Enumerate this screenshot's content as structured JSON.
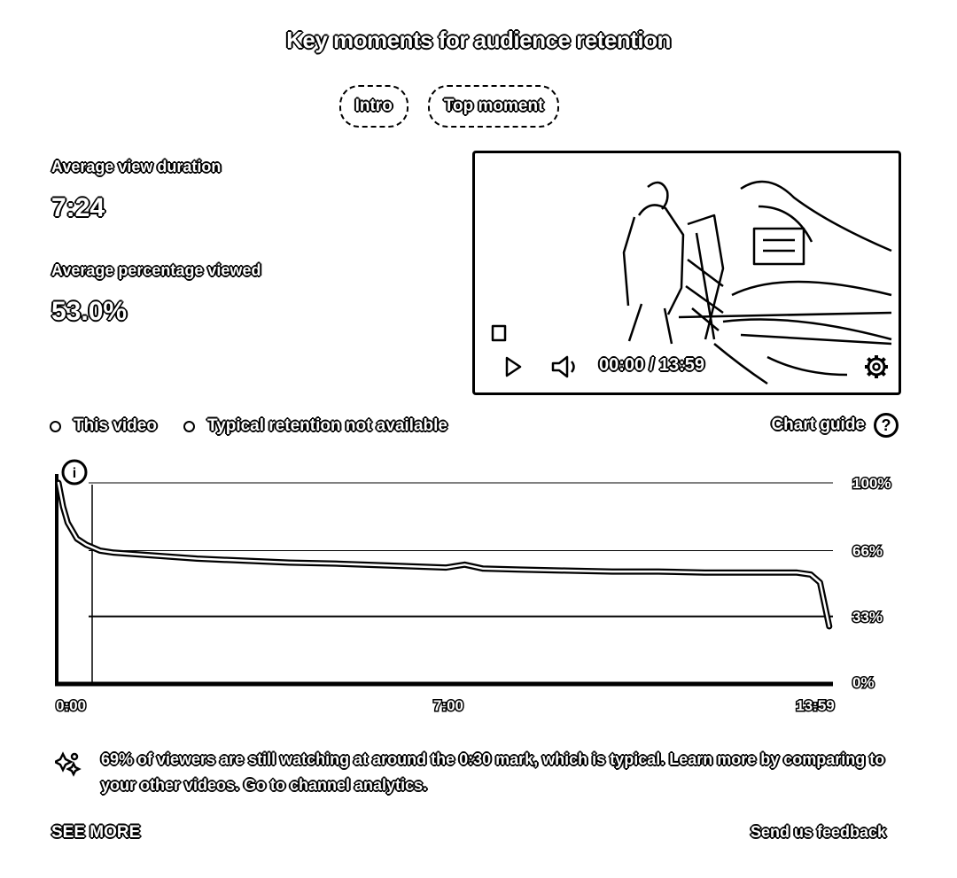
{
  "header": {
    "title": "Key moments for audience retention"
  },
  "tabs": [
    {
      "label": "Intro"
    },
    {
      "label": "Top moment"
    }
  ],
  "metrics": {
    "avg_view_duration_label": "Average view duration",
    "avg_view_duration_value": "7:24",
    "avg_percentage_viewed_label": "Average percentage viewed",
    "avg_percentage_viewed_value": "53.0%"
  },
  "player": {
    "time_readout": "00:00 / 13:59",
    "icons": [
      "play-icon",
      "volume-icon",
      "settings-gear-icon",
      "square-icon"
    ]
  },
  "legend": {
    "this_video": "This video",
    "typical": "Typical retention not available",
    "chart_guide": "Chart guide"
  },
  "chart_data": {
    "type": "line",
    "x_ticks": [
      "0:00",
      "7:00",
      "13:59"
    ],
    "y_ticks": [
      "100%",
      "66%",
      "33%",
      "0%"
    ],
    "ylim": [
      0,
      100
    ],
    "xlim_seconds": [
      0,
      839
    ],
    "marker_label": "i",
    "series": [
      {
        "x": [
          0,
          5,
          10,
          20,
          30,
          45,
          60,
          90,
          120,
          150,
          200,
          250,
          300,
          360,
          420,
          440,
          460,
          500,
          550,
          600,
          650,
          700,
          750,
          800,
          815,
          825,
          835
        ],
        "y": [
          100,
          88,
          80,
          72,
          69,
          66,
          65,
          64,
          63,
          62,
          61,
          60,
          59.5,
          58.5,
          57.5,
          59,
          57,
          56.5,
          56,
          55.5,
          55.5,
          55,
          55,
          55,
          54,
          50,
          28
        ]
      }
    ]
  },
  "insight": {
    "text": "69% of viewers are still watching at around the 0:30 mark, which is typical. Learn more by comparing to your other videos. Go to channel analytics."
  },
  "footer": {
    "see_more": "SEE MORE",
    "feedback": "Send us feedback"
  }
}
